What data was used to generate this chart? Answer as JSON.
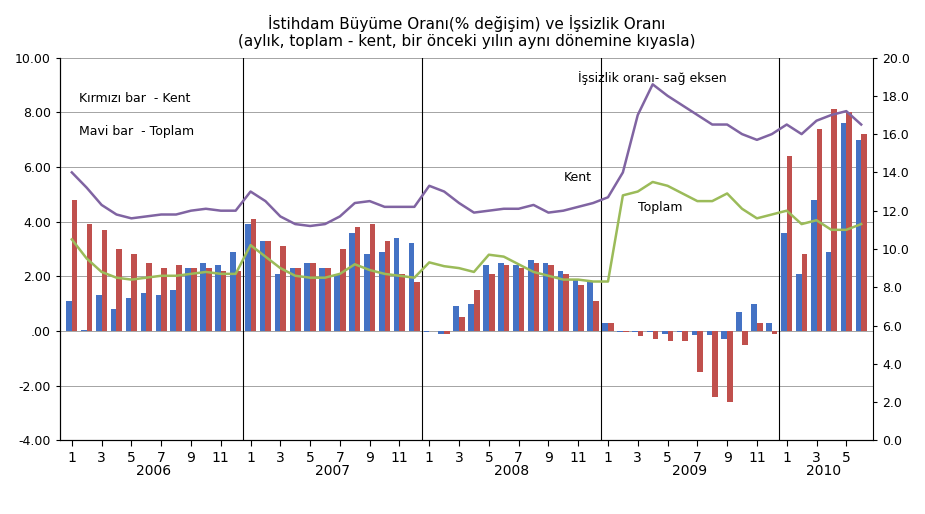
{
  "title_line1": "İstihdam Büyüme Oranı(% değişim) ve İşsizlik Oranı",
  "title_line2": "(aylık, toplam - kent, bir önceki yılın aynı dönemine kıyasla)",
  "years": [
    2006,
    2007,
    2008,
    2009,
    2010
  ],
  "months_per_year": [
    12,
    12,
    12,
    12,
    6
  ],
  "bar_blue": [
    1.1,
    0.05,
    1.3,
    0.8,
    1.2,
    1.4,
    1.3,
    1.5,
    2.3,
    2.5,
    2.4,
    2.9,
    3.9,
    3.3,
    2.1,
    2.3,
    2.5,
    2.3,
    2.1,
    3.6,
    2.8,
    2.9,
    3.4,
    3.2,
    -0.05,
    -0.1,
    0.9,
    1.0,
    2.4,
    2.5,
    2.4,
    2.6,
    2.5,
    2.2,
    1.9,
    1.8,
    0.3,
    -0.05,
    -0.05,
    -0.05,
    -0.1,
    -0.05,
    -0.15,
    -0.15,
    -0.3,
    0.7,
    1.0,
    0.3,
    3.6,
    2.1,
    4.8,
    2.9,
    7.6,
    7.0
  ],
  "bar_red": [
    4.8,
    3.9,
    3.7,
    3.0,
    2.8,
    2.5,
    2.3,
    2.4,
    2.3,
    2.3,
    2.2,
    2.2,
    4.1,
    3.3,
    3.1,
    2.3,
    2.5,
    2.3,
    3.0,
    3.8,
    3.9,
    3.3,
    2.1,
    1.8,
    0.0,
    -0.1,
    0.5,
    1.5,
    2.1,
    2.4,
    2.3,
    2.5,
    2.4,
    2.1,
    1.7,
    1.1,
    0.3,
    -0.05,
    -0.2,
    -0.3,
    -0.35,
    -0.35,
    -1.5,
    -2.4,
    -2.6,
    -0.5,
    0.3,
    -0.1,
    6.4,
    2.8,
    7.4,
    8.1,
    8.0,
    7.2
  ],
  "line_toplam": [
    10.5,
    9.5,
    8.8,
    8.5,
    8.4,
    8.5,
    8.6,
    8.6,
    8.7,
    8.8,
    8.7,
    8.7,
    10.2,
    9.6,
    9.0,
    8.6,
    8.5,
    8.5,
    8.7,
    9.2,
    8.9,
    8.7,
    8.6,
    8.5,
    9.3,
    9.1,
    9.0,
    8.8,
    9.7,
    9.6,
    9.2,
    8.8,
    8.6,
    8.4,
    8.4,
    8.3,
    8.3,
    12.8,
    13.0,
    13.5,
    13.3,
    12.9,
    12.5,
    12.5,
    12.9,
    12.1,
    11.6,
    11.8,
    12.0,
    11.3,
    11.5,
    11.0,
    11.0,
    11.3
  ],
  "line_kent": [
    14.0,
    13.2,
    12.3,
    11.8,
    11.6,
    11.7,
    11.8,
    11.8,
    12.0,
    12.1,
    12.0,
    12.0,
    13.0,
    12.5,
    11.7,
    11.3,
    11.2,
    11.3,
    11.7,
    12.4,
    12.5,
    12.2,
    12.2,
    12.2,
    13.3,
    13.0,
    12.4,
    11.9,
    12.0,
    12.1,
    12.1,
    12.3,
    11.9,
    12.0,
    12.2,
    12.4,
    12.7,
    14.0,
    17.0,
    18.6,
    18.0,
    17.5,
    17.0,
    16.5,
    16.5,
    16.0,
    15.7,
    16.0,
    16.5,
    16.0,
    16.7,
    17.0,
    17.2,
    16.5
  ],
  "color_blue": "#4472C4",
  "color_red": "#C0504D",
  "color_toplam": "#9BBB59",
  "color_kent": "#8064A2",
  "ylim": [
    -4.0,
    10.0
  ],
  "y2lim": [
    0.0,
    20.0
  ],
  "yticks_left": [
    -4.0,
    -2.0,
    0.0,
    2.0,
    4.0,
    6.0,
    8.0,
    10.0
  ],
  "ytick_labels_left": [
    "-4.00",
    "-2.00",
    ".00",
    "2.00",
    "4.00",
    "6.00",
    "8.00",
    "10.00"
  ],
  "yticks_right": [
    0.0,
    2.0,
    4.0,
    6.0,
    8.0,
    10.0,
    12.0,
    14.0,
    16.0,
    18.0,
    20.0
  ],
  "ytick_labels_right": [
    "0.0",
    "2.0",
    "4.0",
    "6.0",
    "8.0",
    "10.0",
    "12.0",
    "14.0",
    "16.0",
    "18.0",
    "20.0"
  ],
  "annotation_red": "Kırmızı bar  - Kent",
  "annotation_blue": "Mavi bar  - Toplam",
  "annotation_kent": "Kent",
  "annotation_toplam": "Toplam",
  "annotation_issizlik": "İşsizlik oranı- sağ eksen",
  "background_color": "#FFFFFF"
}
